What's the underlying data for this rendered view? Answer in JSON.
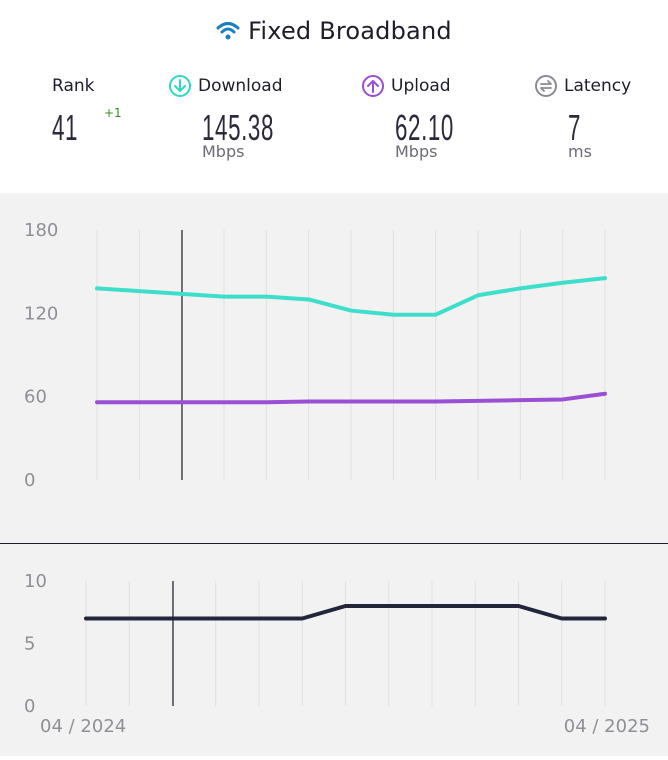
{
  "header": {
    "title": "Fixed Broadband",
    "icon": "wifi-icon",
    "icon_color": "#1a7fc0"
  },
  "stats": {
    "rank": {
      "label": "Rank",
      "value": "41",
      "delta": "+1",
      "delta_color": "#3b8a2a"
    },
    "download": {
      "label": "Download",
      "value": "145.38",
      "unit": "Mbps",
      "icon": "download-icon",
      "color": "#2ed9c3"
    },
    "upload": {
      "label": "Upload",
      "value": "62.10",
      "unit": "Mbps",
      "icon": "upload-icon",
      "color": "#9b4dd6"
    },
    "latency": {
      "label": "Latency",
      "value": "7",
      "unit": "ms",
      "icon": "latency-icon",
      "color": "#8a8a96"
    }
  },
  "chart_data": [
    {
      "type": "line",
      "ylim": [
        0,
        180
      ],
      "yticks": [
        0,
        60,
        120,
        180
      ],
      "series": [
        {
          "name": "Download",
          "color": "#3ddfca",
          "values": [
            138,
            136,
            134,
            132,
            132,
            130,
            122,
            119,
            119,
            133,
            138,
            142,
            145.38
          ]
        },
        {
          "name": "Upload",
          "color": "#9a4fd4",
          "values": [
            56,
            56,
            56,
            56,
            56,
            56.5,
            56.5,
            56.5,
            56.5,
            57,
            57.5,
            58,
            62.1
          ]
        }
      ],
      "grid": true
    },
    {
      "type": "line",
      "ylim": [
        0,
        10
      ],
      "yticks": [
        0,
        5,
        10
      ],
      "series": [
        {
          "name": "Latency",
          "color": "#22263a",
          "values": [
            7,
            7,
            7,
            7,
            7,
            7,
            8,
            8,
            8,
            8,
            8,
            7,
            7
          ]
        }
      ],
      "x_start_label": "04 / 2024",
      "x_end_label": "04 / 2025",
      "grid": true
    }
  ]
}
